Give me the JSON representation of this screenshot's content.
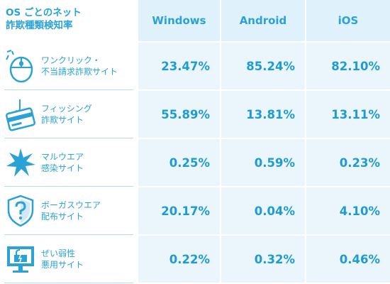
{
  "header": {
    "title_line1": "OS ごとのネット",
    "title_line2": "詐欺種類検知率",
    "columns": [
      "Windows",
      "Android",
      "iOS"
    ]
  },
  "rows": [
    {
      "icon": "mouse-click-icon",
      "label_line1": "ワンクリック・",
      "label_line2": "不当請求詐欺サイト",
      "values": [
        "23.47%",
        "85.24%",
        "82.10%"
      ]
    },
    {
      "icon": "fishing-hook-card-icon",
      "label_line1": "フィッシング",
      "label_line2": "詐欺サイト",
      "values": [
        "55.89%",
        "13.81%",
        "13.11%"
      ]
    },
    {
      "icon": "malware-splat-icon",
      "label_line1": "マルウエア",
      "label_line2": "感染サイト",
      "values": [
        "0.25%",
        "0.59%",
        "0.23%"
      ]
    },
    {
      "icon": "question-shield-icon",
      "label_line1": "ボーガスウエア",
      "label_line2": "配布サイト",
      "values": [
        "20.17%",
        "0.04%",
        "4.10%"
      ]
    },
    {
      "icon": "broken-lock-monitor-icon",
      "label_line1": "ぜい弱性",
      "label_line2": "悪用サイト",
      "values": [
        "0.22%",
        "0.32%",
        "0.46%"
      ]
    }
  ],
  "colors": {
    "accent": "#2aa2d6",
    "value_text": "#1f9bd4",
    "header_bg": "#dff1fb",
    "cell_bg": "#eaf6fc"
  }
}
